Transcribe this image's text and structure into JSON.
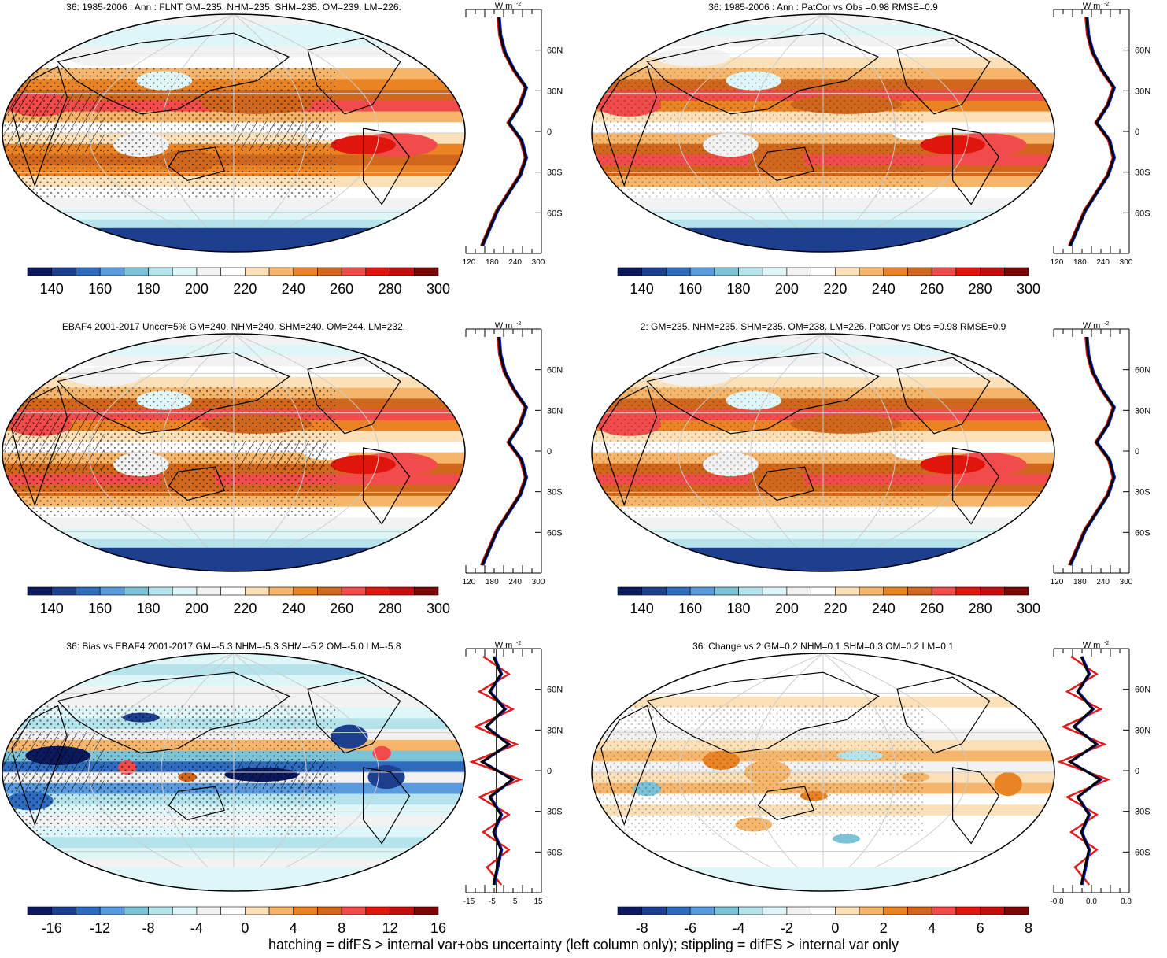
{
  "panels": [
    {
      "id": "p1",
      "title": "36: 1985-2006 : Ann : FLNT GM=235. NHM=235. SHM=235. OM=239. LM=226.",
      "colorbar_labels": [
        "140",
        "160",
        "180",
        "200",
        "220",
        "240",
        "260",
        "280",
        "300"
      ],
      "profile_unit": "W m",
      "profile_unit_sup": "-2",
      "profile_x_ticks": [
        "120",
        "180",
        "240",
        "300"
      ],
      "profile_y_ticks": [
        "60N",
        "30N",
        "0",
        "30S",
        "60S"
      ],
      "hatching": true
    },
    {
      "id": "p2",
      "title": "36: 1985-2006 : Ann : PatCor vs Obs =0.98 RMSE=0.9",
      "colorbar_labels": [
        "140",
        "160",
        "180",
        "200",
        "220",
        "240",
        "260",
        "280",
        "300"
      ],
      "profile_unit": "W m",
      "profile_unit_sup": "-2",
      "profile_x_ticks": [
        "120",
        "180",
        "240",
        "300"
      ],
      "profile_y_ticks": [
        "60N",
        "30N",
        "0",
        "30S",
        "60S"
      ],
      "hatching": false
    },
    {
      "id": "p3",
      "title": "EBAF4 2001-2017 Uncer=5% GM=240. NHM=240. SHM=240. OM=244. LM=232.",
      "colorbar_labels": [
        "140",
        "160",
        "180",
        "200",
        "220",
        "240",
        "260",
        "280",
        "300"
      ],
      "profile_unit": "W m",
      "profile_unit_sup": "-2",
      "profile_x_ticks": [
        "120",
        "180",
        "240",
        "300"
      ],
      "profile_y_ticks": [
        "60N",
        "30N",
        "0",
        "30S",
        "60S"
      ],
      "hatching": true
    },
    {
      "id": "p4",
      "title": "2: GM=235. NHM=235. SHM=235. OM=238. LM=226. PatCor vs Obs =0.98 RMSE=0.9",
      "colorbar_labels": [
        "140",
        "160",
        "180",
        "200",
        "220",
        "240",
        "260",
        "280",
        "300"
      ],
      "profile_unit": "W m",
      "profile_unit_sup": "-2",
      "profile_x_ticks": [
        "120",
        "180",
        "240",
        "300"
      ],
      "profile_y_ticks": [
        "60N",
        "30N",
        "0",
        "30S",
        "60S"
      ],
      "hatching": false
    },
    {
      "id": "p5",
      "title": "36: Bias vs EBAF4 2001-2017 GM=-5.3 NHM=-5.3 SHM=-5.2 OM=-5.0 LM=-5.8",
      "colorbar_labels": [
        "-16",
        "-12",
        "-8",
        "-4",
        "0",
        "4",
        "8",
        "12",
        "16"
      ],
      "profile_unit": "W m",
      "profile_unit_sup": "-2",
      "profile_x_ticks": [
        "-15",
        "-5",
        "5",
        "15"
      ],
      "profile_y_ticks": [
        "60N",
        "30N",
        "0",
        "30S",
        "60S"
      ],
      "hatching": true
    },
    {
      "id": "p6",
      "title": "36: Change vs 2 GM=0.2 NHM=0.1 SHM=0.3 OM=0.2 LM=0.1",
      "colorbar_labels": [
        "-8",
        "-6",
        "-4",
        "-2",
        "0",
        "2",
        "4",
        "6",
        "8"
      ],
      "profile_unit": "W m",
      "profile_unit_sup": "-2",
      "profile_x_ticks": [
        "-0.8",
        "0.0",
        "0.8"
      ],
      "profile_y_ticks": [
        "60N",
        "30N",
        "0",
        "30S",
        "60S"
      ],
      "hatching": false
    }
  ],
  "palette": [
    "#0b1a5e",
    "#1c3f8f",
    "#2f6cc0",
    "#5a9be0",
    "#7cc3d8",
    "#b4e3ec",
    "#dff6f8",
    "#f2f2f2",
    "#ffffff",
    "#fbe0b8",
    "#f5b56a",
    "#e98324",
    "#d0671d",
    "#f24b4b",
    "#e0150c",
    "#c60d0d",
    "#7a0606"
  ],
  "line_colors": {
    "model": "#e31a1c",
    "obs": "#0020d0",
    "mean": "#000000"
  },
  "footer": "hatching = difFS > internal var+obs uncertainty (left column only); stippling = difFS > internal var only"
}
